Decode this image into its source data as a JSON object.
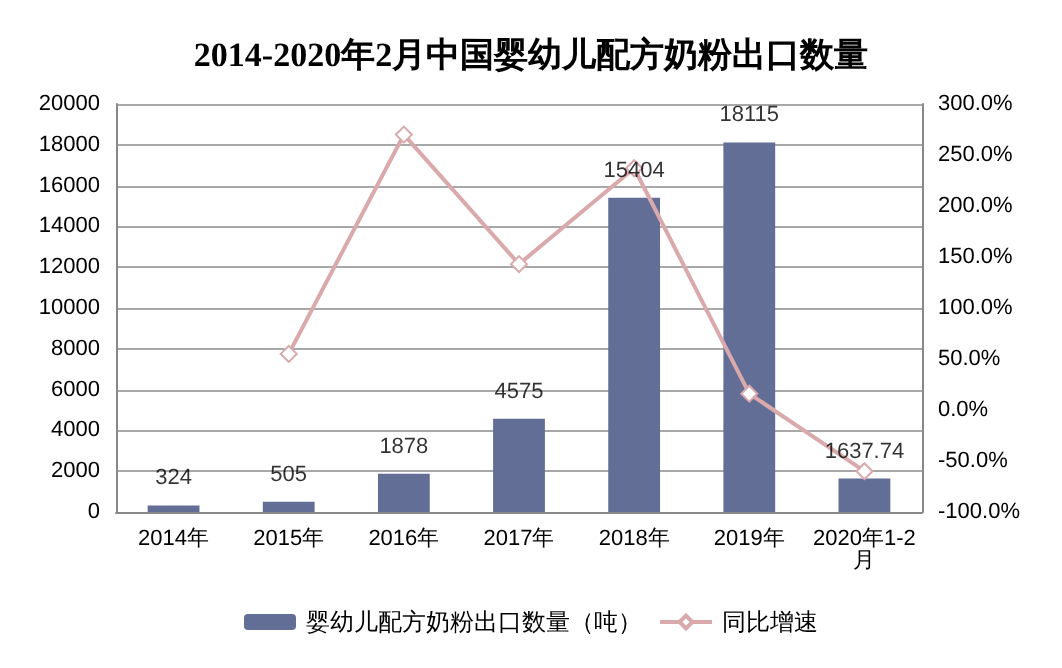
{
  "chart_data": {
    "type": "bar",
    "title": "2014-2020年2月中国婴幼儿配方奶粉出口数量",
    "categories": [
      "2014年",
      "2015年",
      "2016年",
      "2017年",
      "2018年",
      "2019年",
      "2020年1-2月"
    ],
    "series": [
      {
        "name": "婴幼儿配方奶粉出口数量（吨）",
        "color": "#636e96",
        "values": [
          324,
          505,
          1878,
          4575,
          15404,
          18115,
          1637.74
        ],
        "value_labels": [
          "324",
          "505",
          "1878",
          "4575",
          "15404",
          "18115",
          "1637.74"
        ]
      },
      {
        "name": "同比增速",
        "type": "line",
        "axis": "y2",
        "color": "#d9a9ab",
        "marker": "diamond",
        "values": [
          null,
          55,
          270,
          143,
          237,
          16,
          -60
        ]
      }
    ],
    "ylim": [
      0,
      20000
    ],
    "yticks": [
      0,
      2000,
      4000,
      6000,
      8000,
      10000,
      12000,
      14000,
      16000,
      18000,
      20000
    ],
    "y2lim": [
      -100,
      300
    ],
    "y2ticks": [
      {
        "value": -100,
        "label": "-100.0%"
      },
      {
        "value": -50,
        "label": "-50.0%"
      },
      {
        "value": 0,
        "label": "0.0%"
      },
      {
        "value": 50,
        "label": "50.0%"
      },
      {
        "value": 100,
        "label": "100.0%"
      },
      {
        "value": 150,
        "label": "150.0%"
      },
      {
        "value": 200,
        "label": "200.0%"
      },
      {
        "value": 250,
        "label": "250.0%"
      },
      {
        "value": 300,
        "label": "300.0%"
      }
    ],
    "grid": "y",
    "legend": "bottom"
  }
}
